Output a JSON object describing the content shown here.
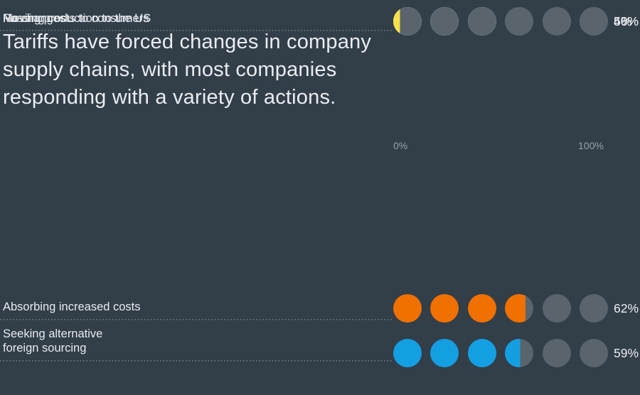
{
  "page": {
    "background_color": "#323E48"
  },
  "title": {
    "lines": [
      "Tariffs have forced changes in company",
      "supply chains, with most companies",
      "responding with a variety of actions."
    ],
    "text_color": "#E9EDF1"
  },
  "axis": {
    "min_label": "0%",
    "max_label": "100%",
    "label_color": "#99A2AB"
  },
  "chart_data": {
    "type": "dot-matrix",
    "title": "Tariffs have forced changes in company supply chains, with most companies responding with a variety of actions.",
    "axis_range": [
      0,
      100
    ],
    "dots_per_row": 6,
    "percent_per_dot": 16.667,
    "categories": [
      "Absorbing increased costs",
      "Seeking alternative foreign sourcing",
      "Passing costs to consumers",
      "Moving production to the US",
      "No changes"
    ],
    "values": [
      62,
      59,
      56,
      50,
      4
    ],
    "rows": [
      {
        "label": "Absorbing increased costs",
        "value": 62,
        "pct_label": "62%",
        "color": "#F07000"
      },
      {
        "label": "Seeking alternative\nforeign sourcing",
        "value": 59,
        "pct_label": "59%",
        "color": "#149FE3"
      },
      {
        "label": "Passing costs to consumers",
        "value": 56,
        "pct_label": "56%",
        "color": "#2FD06F"
      },
      {
        "label": "Moving production to the US",
        "value": 50,
        "pct_label": "50%",
        "color": "#D8ECFE"
      },
      {
        "label": "No changes",
        "value": 4,
        "pct_label": "4%",
        "color": "#F8E04A"
      }
    ],
    "empty_dot_color": "#5A646D",
    "leader_line_color": "#79838C",
    "value_label_color": "#E9EDF1",
    "legend": "none",
    "grid": "off"
  }
}
